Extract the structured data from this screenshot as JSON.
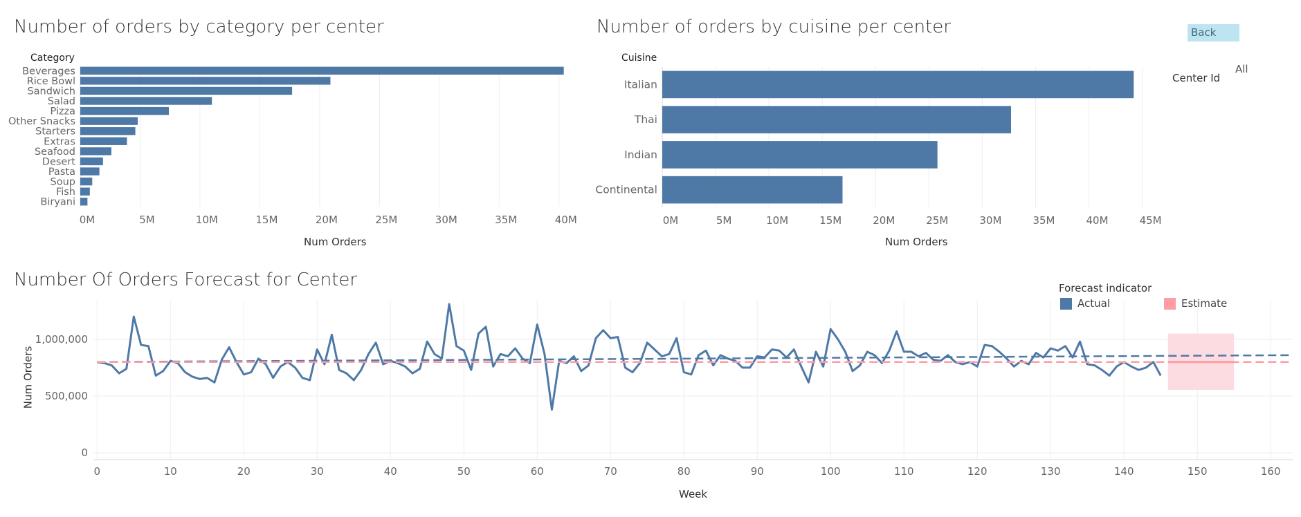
{
  "back_button": "Back",
  "filter": {
    "label": "Center Id",
    "value": "All"
  },
  "colors": {
    "bar": "#4e79a7",
    "actual": "#4e79a7",
    "estimate": "#ff9da7",
    "estimate_band": "#fcdbe1",
    "grid": "#eeeeee"
  },
  "chart_data": [
    {
      "type": "bar",
      "orientation": "horizontal",
      "title": "Number of orders by category per center",
      "category_header": "Category",
      "xlabel": "Num Orders",
      "categories": [
        "Beverages",
        "Rice Bowl",
        "Sandwich",
        "Salad",
        "Pizza",
        "Other Snacks",
        "Starters",
        "Extras",
        "Seafood",
        "Desert",
        "Pasta",
        "Soup",
        "Fish",
        "Biryani"
      ],
      "values": [
        40400000,
        20900000,
        17700000,
        11000000,
        7400000,
        4800000,
        4600000,
        3900000,
        2600000,
        1900000,
        1600000,
        1000000,
        800000,
        600000
      ],
      "xlim": [
        0,
        42500000
      ],
      "ticks": [
        0,
        5000000,
        10000000,
        15000000,
        20000000,
        25000000,
        30000000,
        35000000,
        40000000
      ],
      "tick_labels": [
        "0M",
        "5M",
        "10M",
        "15M",
        "20M",
        "25M",
        "30M",
        "35M",
        "40M"
      ],
      "grid": true
    },
    {
      "type": "bar",
      "orientation": "horizontal",
      "title": "Number of orders by cuisine per center",
      "category_header": "Cuisine",
      "xlabel": "Num Orders",
      "categories": [
        "Italian",
        "Thai",
        "Indian",
        "Continental"
      ],
      "values": [
        44200000,
        32700000,
        25800000,
        16900000
      ],
      "xlim": [
        0,
        46000000
      ],
      "ticks": [
        0,
        5000000,
        10000000,
        15000000,
        20000000,
        25000000,
        30000000,
        35000000,
        40000000,
        45000000
      ],
      "tick_labels": [
        "0M",
        "5M",
        "10M",
        "15M",
        "20M",
        "25M",
        "30M",
        "35M",
        "40M",
        "45M"
      ],
      "grid": true
    },
    {
      "type": "line",
      "title": "Number Of Orders Forecast for Center",
      "xlabel": "Week",
      "ylabel": "Num Orders",
      "xlim": [
        -0.5,
        163
      ],
      "ylim": [
        -60000,
        1340000
      ],
      "xticks": [
        0,
        10,
        20,
        30,
        40,
        50,
        60,
        70,
        80,
        90,
        100,
        110,
        120,
        130,
        140,
        150,
        160
      ],
      "yticks": [
        0,
        500000,
        1000000
      ],
      "ytick_labels": [
        "0",
        "500,000",
        "1,000,000"
      ],
      "grid": true,
      "legend": {
        "title": "Forecast indicator",
        "position": "top-right",
        "entries": [
          "Actual",
          "Estimate"
        ]
      },
      "series": [
        {
          "name": "Actual",
          "x_start": 0,
          "values": [
            800000,
            790000,
            770000,
            700000,
            740000,
            1200000,
            950000,
            940000,
            680000,
            720000,
            810000,
            790000,
            710000,
            670000,
            650000,
            660000,
            620000,
            820000,
            930000,
            800000,
            690000,
            710000,
            830000,
            780000,
            660000,
            760000,
            800000,
            750000,
            660000,
            640000,
            910000,
            780000,
            1040000,
            730000,
            700000,
            640000,
            730000,
            870000,
            970000,
            780000,
            810000,
            790000,
            760000,
            700000,
            740000,
            980000,
            870000,
            830000,
            1310000,
            940000,
            900000,
            730000,
            1050000,
            1110000,
            760000,
            870000,
            850000,
            920000,
            830000,
            790000,
            1130000,
            870000,
            380000,
            810000,
            790000,
            850000,
            720000,
            770000,
            1010000,
            1080000,
            1010000,
            1020000,
            750000,
            710000,
            790000,
            970000,
            910000,
            850000,
            870000,
            1010000,
            710000,
            690000,
            860000,
            900000,
            770000,
            860000,
            830000,
            810000,
            750000,
            750000,
            850000,
            840000,
            910000,
            900000,
            840000,
            910000,
            760000,
            620000,
            890000,
            760000,
            1090000,
            1000000,
            890000,
            720000,
            770000,
            890000,
            860000,
            790000,
            900000,
            1070000,
            890000,
            890000,
            850000,
            880000,
            820000,
            810000,
            860000,
            800000,
            780000,
            800000,
            760000,
            950000,
            940000,
            890000,
            830000,
            760000,
            810000,
            780000,
            880000,
            840000,
            920000,
            900000,
            940000,
            840000,
            980000,
            780000,
            770000,
            730000,
            680000,
            760000,
            800000,
            760000,
            730000,
            750000,
            800000,
            680000
          ]
        },
        {
          "name": "Estimate",
          "x_start": 146,
          "values": [
            800000,
            800000,
            800000,
            800000,
            800000,
            800000,
            800000,
            800000,
            800000,
            800000
          ],
          "band": {
            "x_start": 146,
            "x_end": 155,
            "low": 555000,
            "high": 1050000
          }
        }
      ],
      "trend_lines": [
        {
          "series": "Actual",
          "x": [
            0,
            163
          ],
          "y": [
            800000,
            860000
          ]
        },
        {
          "series": "Estimate",
          "x": [
            0,
            163
          ],
          "y": [
            800000,
            800000
          ]
        }
      ]
    }
  ]
}
